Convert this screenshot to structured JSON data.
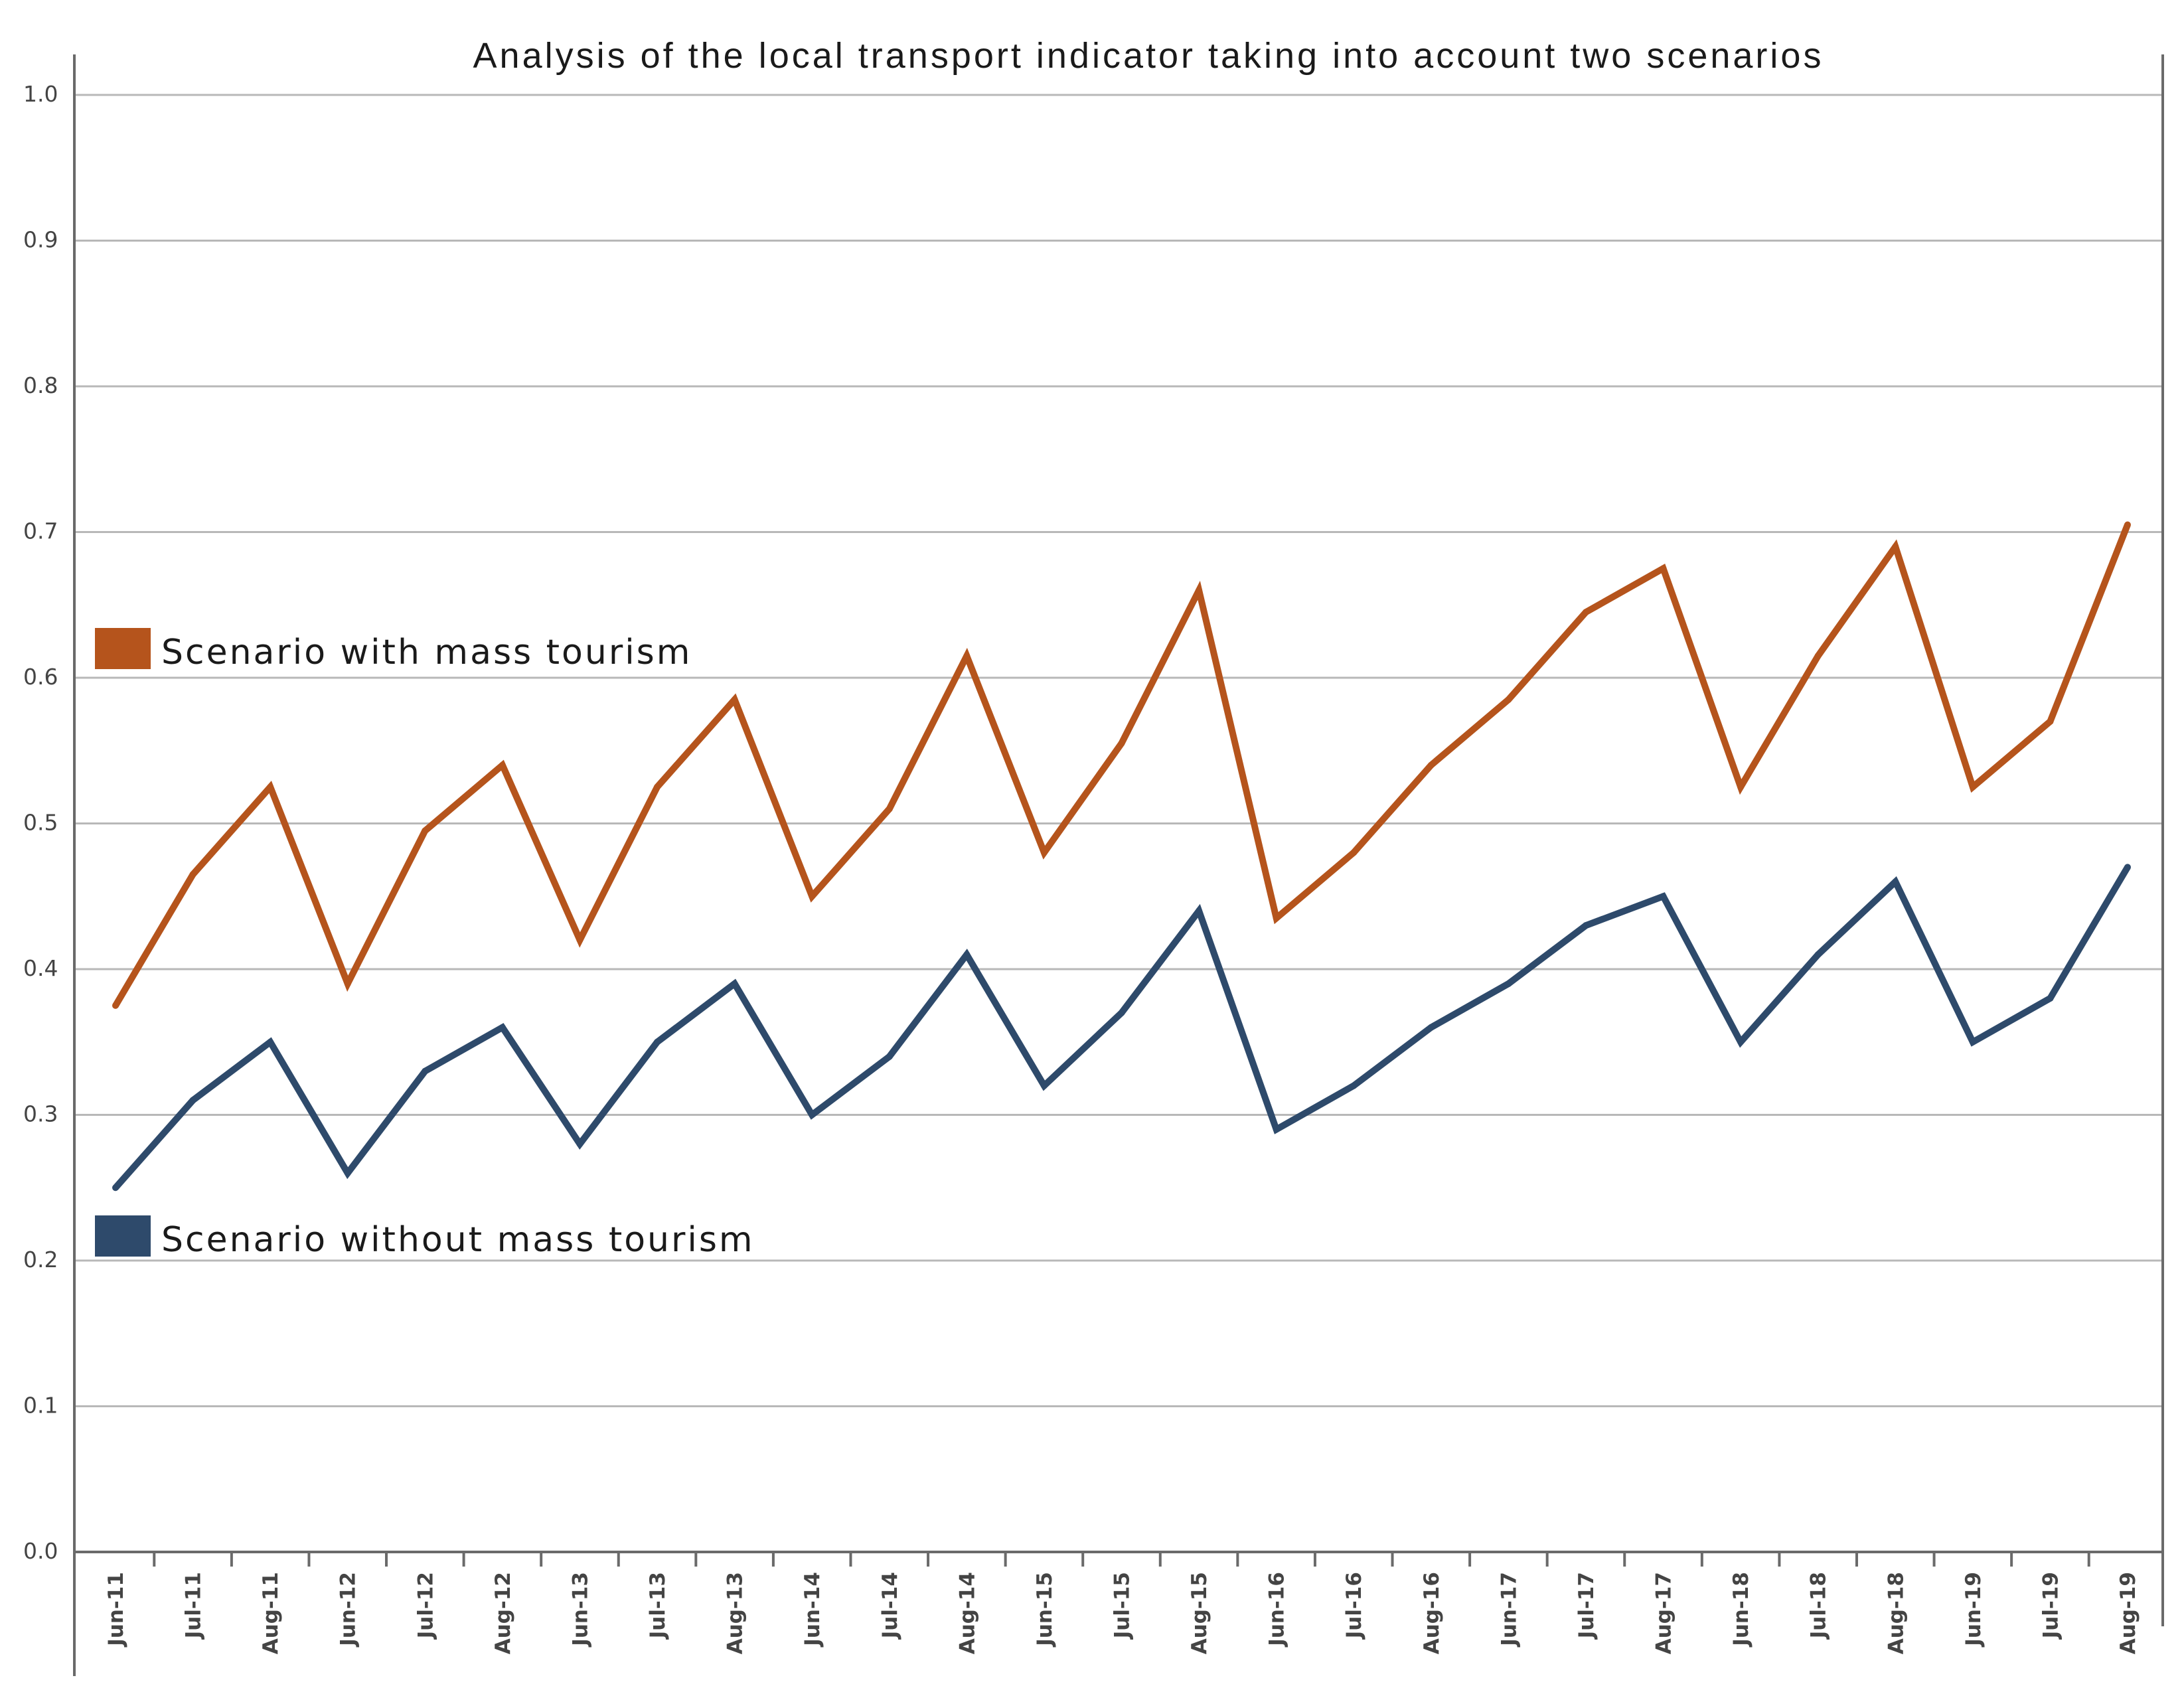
{
  "chart_data": {
    "type": "line",
    "title": "Analysis of the local transport indicator taking into account two scenarios",
    "xlabel": "",
    "ylabel": "",
    "ylim": [
      0,
      1.0
    ],
    "yticks": [
      "0.0",
      "0.1",
      "0.2",
      "0.3",
      "0.4",
      "0.5",
      "0.6",
      "0.7",
      "0.8",
      "0.9",
      "1.0"
    ],
    "grid": true,
    "categories": [
      "Jun-11",
      "Jul-11",
      "Aug-11",
      "Jun-12",
      "Jul-12",
      "Aug-12",
      "Jun-13",
      "Jul-13",
      "Aug-13",
      "Jun-14",
      "Jul-14",
      "Aug-14",
      "Jun-15",
      "Jul-15",
      "Aug-15",
      "Jun-16",
      "Jul-16",
      "Aug-16",
      "Jun-17",
      "Jul-17",
      "Aug-17",
      "Jun-18",
      "Jul-18",
      "Aug-18",
      "Jun-19",
      "Jul-19",
      "Aug-19"
    ],
    "series": [
      {
        "name": "Scenario with mass tourism",
        "color": "#b5541c",
        "values": [
          0.375,
          0.465,
          0.525,
          0.39,
          0.495,
          0.54,
          0.42,
          0.525,
          0.585,
          0.45,
          0.51,
          0.615,
          0.48,
          0.555,
          0.66,
          0.435,
          0.48,
          0.54,
          0.585,
          0.645,
          0.675,
          0.525,
          0.615,
          0.69,
          0.525,
          0.57,
          0.705
        ]
      },
      {
        "name": "Scenario without mass tourism",
        "color": "#2e4a6b",
        "values": [
          0.25,
          0.31,
          0.35,
          0.26,
          0.33,
          0.36,
          0.28,
          0.35,
          0.39,
          0.3,
          0.34,
          0.41,
          0.32,
          0.37,
          0.44,
          0.29,
          0.32,
          0.36,
          0.39,
          0.43,
          0.45,
          0.35,
          0.41,
          0.46,
          0.35,
          0.38,
          0.47
        ]
      }
    ],
    "legend": "inline-left"
  }
}
